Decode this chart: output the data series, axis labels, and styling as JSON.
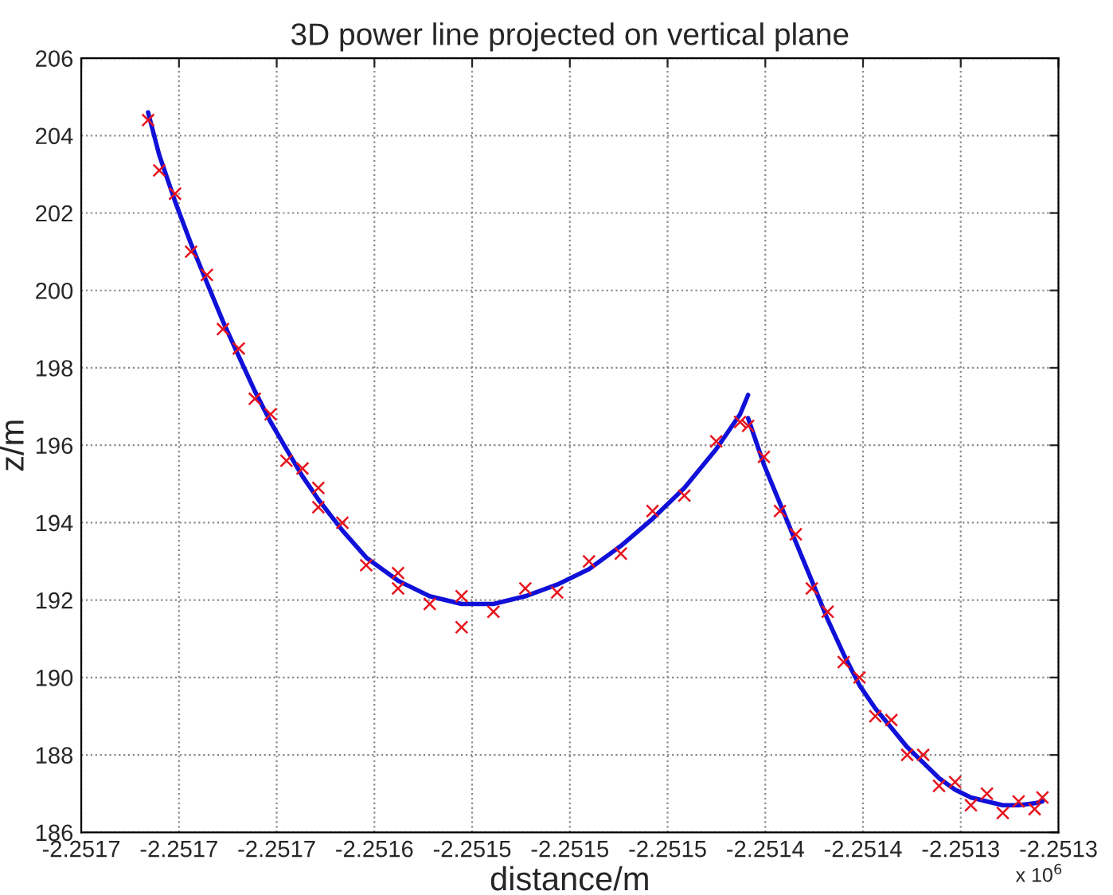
{
  "chart_data": {
    "type": "line",
    "title": "3D power line projected on vertical plane",
    "xlabel": "distance/m",
    "ylabel": "z/m",
    "annotations": [
      "x 10$^{6}$"
    ],
    "xlim": [
      -2.25175,
      -2.25125
    ],
    "ylim": [
      186,
      206
    ],
    "xticks": [
      {
        "value": -2.25175,
        "label": "-2.2517"
      },
      {
        "value": -2.2517,
        "label": "-2.2517"
      },
      {
        "value": -2.25165,
        "label": "-2.2517"
      },
      {
        "value": -2.2516,
        "label": "-2.2516"
      },
      {
        "value": -2.25155,
        "label": "-2.2515"
      },
      {
        "value": -2.2515,
        "label": "-2.2515"
      },
      {
        "value": -2.25145,
        "label": "-2.2515"
      },
      {
        "value": -2.2514,
        "label": "-2.2514"
      },
      {
        "value": -2.25135,
        "label": "-2.2514"
      },
      {
        "value": -2.2513,
        "label": "-2.2513"
      },
      {
        "value": -2.25125,
        "label": "-2.2513"
      }
    ],
    "yticks": [
      186,
      188,
      190,
      192,
      194,
      196,
      198,
      200,
      202,
      204,
      206
    ],
    "grid": true,
    "series": [
      {
        "type": "scatter",
        "color": "#e8141e",
        "marker": "cross",
        "x": [
          -2.2517158,
          -2.2517101,
          -2.251702,
          -2.2516938,
          -2.2516857,
          -2.2516775,
          -2.2516694,
          -2.2516612,
          -2.2516531,
          -2.251645,
          -2.2516368,
          -2.2516287,
          -2.2516164,
          -2.2516042,
          -2.2515879,
          -2.2515717,
          -2.2515554,
          -2.2515391,
          -2.2515228,
          -2.2515065,
          -2.2514902,
          -2.2514739,
          -2.2514577,
          -2.2514414,
          -2.2514251,
          -2.2514129,
          -2.2514088,
          -2.2514007,
          -2.2513925,
          -2.2513844,
          -2.2513762,
          -2.2513681,
          -2.2513599,
          -2.2513518,
          -2.2513437,
          -2.2513355,
          -2.2513274,
          -2.2513192,
          -2.2513111,
          -2.2513029,
          -2.2512948,
          -2.2512866,
          -2.2512785,
          -2.2512704,
          -2.2512622,
          -2.2512582,
          -2.2515554,
          -2.2516287,
          -2.2515879
        ],
        "values": [
          204.4,
          203.1,
          202.5,
          201.0,
          200.4,
          199.0,
          198.5,
          197.2,
          196.8,
          195.6,
          195.4,
          194.4,
          194.0,
          192.9,
          192.7,
          191.9,
          192.1,
          191.7,
          192.3,
          192.2,
          193.0,
          193.2,
          194.3,
          194.7,
          196.1,
          196.6,
          196.5,
          195.7,
          194.3,
          193.7,
          192.3,
          191.7,
          190.4,
          190.0,
          189.0,
          188.9,
          188.0,
          188.0,
          187.2,
          187.3,
          186.7,
          187.0,
          186.5,
          186.8,
          186.6,
          186.9,
          191.3,
          194.9,
          192.3
        ]
      },
      {
        "color": "#1010d8",
        "x": [
          -2.2517158,
          -2.2517101,
          -2.251702,
          -2.2516938,
          -2.2516857,
          -2.2516775,
          -2.2516694,
          -2.2516612,
          -2.2516531,
          -2.251645,
          -2.2516368,
          -2.2516287,
          -2.2516164,
          -2.2516042,
          -2.2515879,
          -2.2515717,
          -2.2515554,
          -2.2515391,
          -2.2515228,
          -2.2515065,
          -2.2514902,
          -2.2514739,
          -2.2514577,
          -2.2514414,
          -2.2514251,
          -2.2514129,
          -2.2514088
        ],
        "values": [
          204.6,
          203.5,
          202.3,
          201.2,
          200.2,
          199.2,
          198.3,
          197.4,
          196.6,
          195.9,
          195.2,
          194.6,
          193.8,
          193.1,
          192.5,
          192.1,
          191.9,
          191.9,
          192.1,
          192.4,
          192.8,
          193.4,
          194.1,
          194.9,
          195.9,
          196.8,
          197.3
        ]
      },
      {
        "color": "#1010d8",
        "x": [
          -2.2514088,
          -2.2514007,
          -2.2513925,
          -2.2513844,
          -2.2513762,
          -2.2513681,
          -2.2513599,
          -2.2513518,
          -2.2513437,
          -2.2513355,
          -2.2513274,
          -2.2513192,
          -2.2513111,
          -2.2513029,
          -2.2512948,
          -2.2512866,
          -2.2512785,
          -2.2512704,
          -2.2512622,
          -2.2512582
        ],
        "values": [
          196.7,
          195.5,
          194.5,
          193.5,
          192.5,
          191.5,
          190.6,
          189.8,
          189.2,
          188.7,
          188.2,
          187.8,
          187.4,
          187.1,
          186.9,
          186.8,
          186.7,
          186.7,
          186.75,
          186.8
        ]
      }
    ]
  }
}
